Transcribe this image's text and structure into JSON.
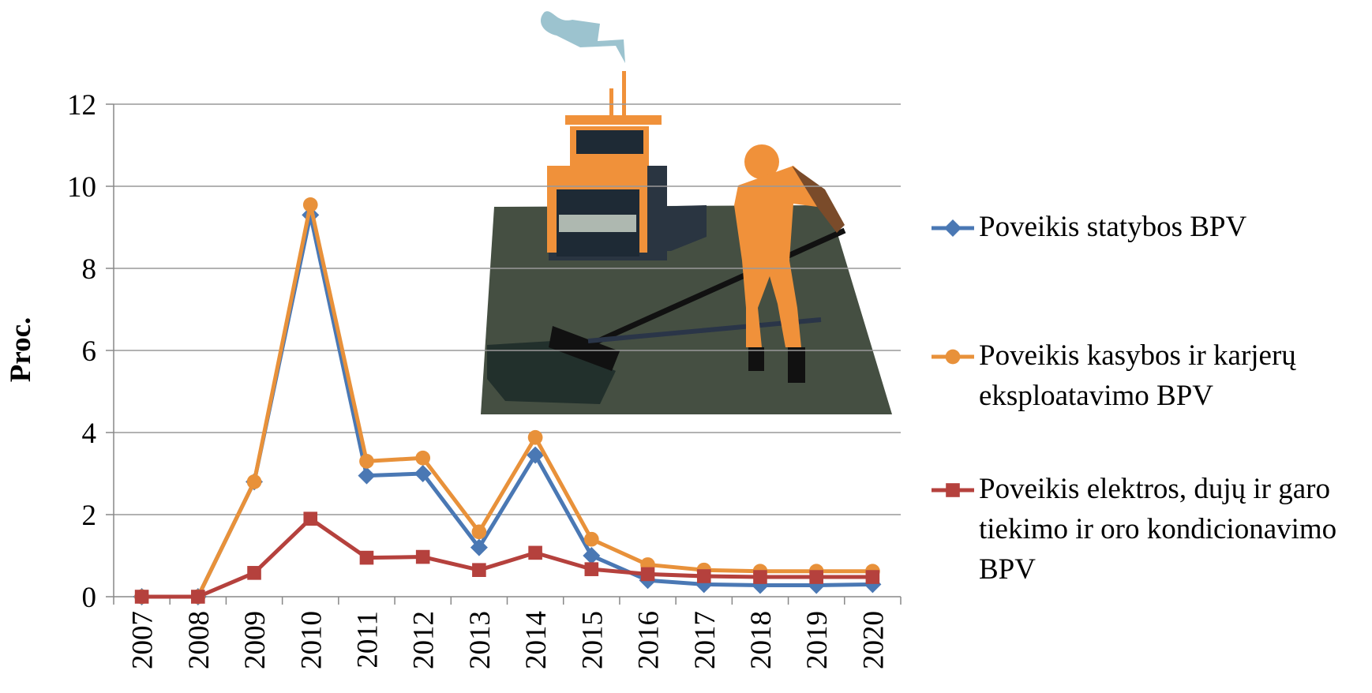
{
  "chart_data": {
    "type": "line",
    "y_label": "Proc.",
    "categories": [
      "2007",
      "2008",
      "2009",
      "2010",
      "2011",
      "2012",
      "2013",
      "2014",
      "2015",
      "2016",
      "2017",
      "2018",
      "2019",
      "2020"
    ],
    "series": [
      {
        "name": "Poveikis statybos BPV",
        "color": "#4a78b4",
        "marker": "diamond",
        "values": [
          0,
          0,
          2.8,
          9.3,
          2.95,
          3.0,
          1.2,
          3.45,
          1.0,
          0.4,
          0.3,
          0.28,
          0.28,
          0.3
        ]
      },
      {
        "name": "Poveikis kasybos ir karjerų eksploatavimo BPV",
        "color": "#e8913a",
        "marker": "circle",
        "values": [
          0,
          0,
          2.8,
          9.55,
          3.3,
          3.38,
          1.58,
          3.88,
          1.4,
          0.78,
          0.65,
          0.62,
          0.62,
          0.62
        ]
      },
      {
        "name": "Poveikis elektros, dujų ir garo tiekimo ir oro kondicionavimo BPV",
        "color": "#b5413d",
        "marker": "square",
        "values": [
          0,
          0,
          0.58,
          1.9,
          0.95,
          0.97,
          0.65,
          1.07,
          0.67,
          0.55,
          0.5,
          0.48,
          0.48,
          0.48
        ]
      }
    ],
    "ylim": [
      0,
      12
    ],
    "yticks": [
      0,
      2,
      4,
      6,
      8,
      10,
      12
    ],
    "grid": true,
    "legend": "right"
  }
}
